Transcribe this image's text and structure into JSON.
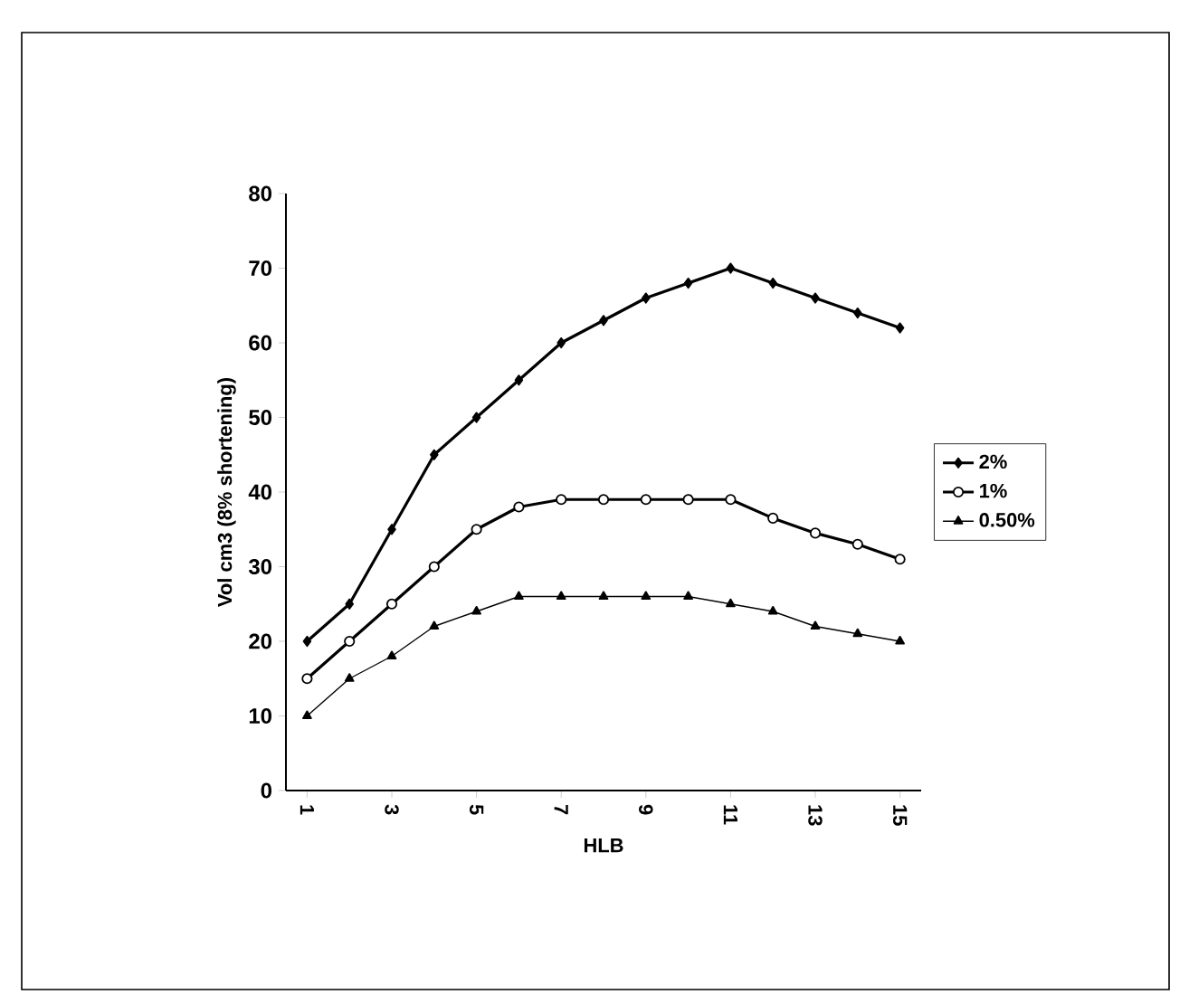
{
  "chart_data": {
    "type": "line",
    "xlabel": "HLB",
    "ylabel": "Vol cm3  (8% shortening)",
    "categories": [
      "1",
      null,
      "3",
      null,
      "5",
      null,
      "7",
      null,
      "9",
      null,
      "11",
      null,
      "13",
      null,
      "15"
    ],
    "series": [
      {
        "name": "2%",
        "color": "#000000",
        "marker": "diamond",
        "values": [
          20,
          25,
          35,
          45,
          50,
          55,
          60,
          63,
          66,
          68,
          70,
          68,
          66,
          64,
          62
        ]
      },
      {
        "name": "1%",
        "color": "#000000",
        "marker": "circle",
        "values": [
          15,
          20,
          25,
          30,
          35,
          38,
          39,
          39,
          39,
          39,
          39,
          36.5,
          34.5,
          33,
          31
        ]
      },
      {
        "name": "0.50%",
        "color": "#000000",
        "marker": "triangle",
        "values": [
          10,
          15,
          18,
          22,
          24,
          26,
          26,
          26,
          26,
          26,
          25,
          24,
          22,
          21,
          20
        ]
      }
    ],
    "ylim": [
      0,
      80
    ],
    "yticks": [
      0,
      10,
      20,
      30,
      40,
      50,
      60,
      70,
      80
    ],
    "grid": false,
    "legend": "right",
    "line_style": "solid"
  }
}
